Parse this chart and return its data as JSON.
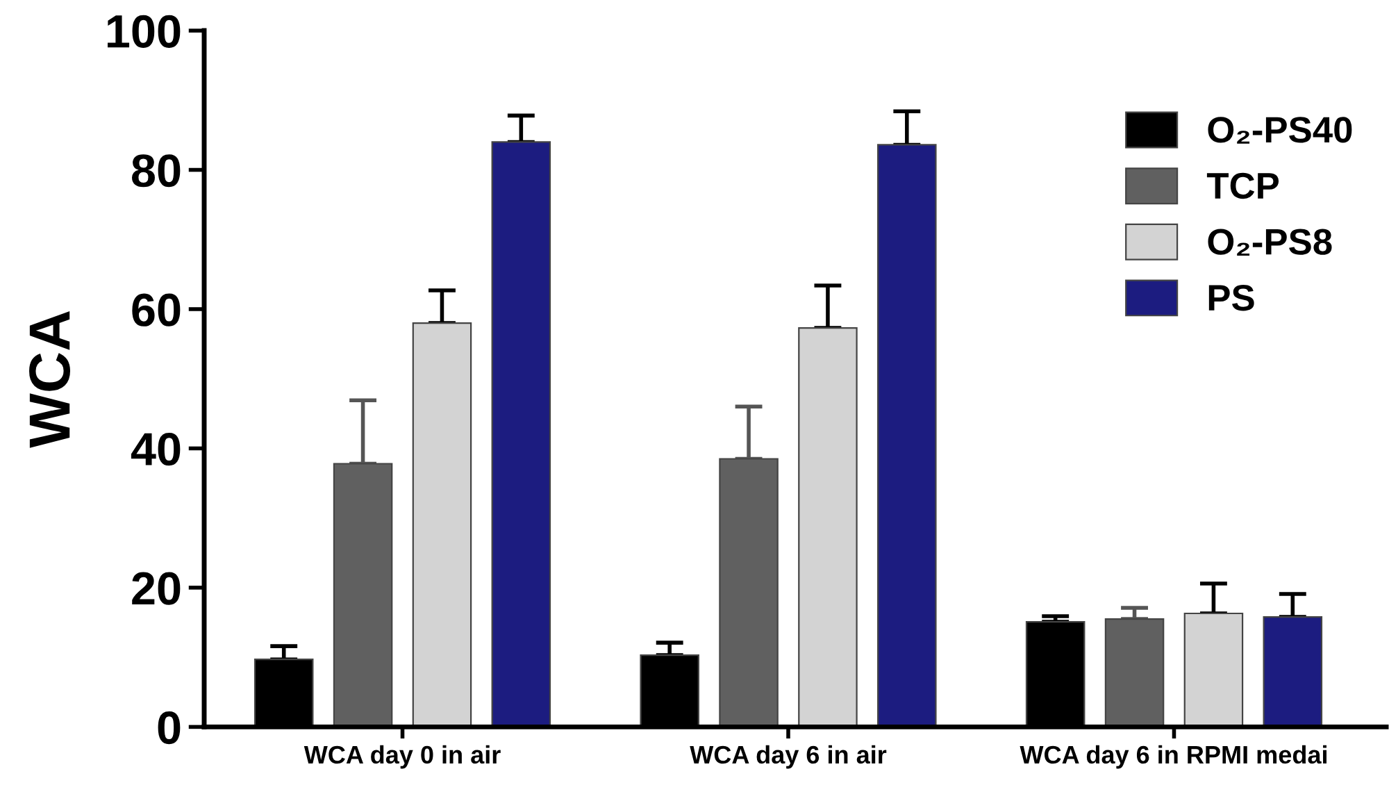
{
  "chart_data": {
    "type": "bar",
    "ylabel": "WCA",
    "categories": [
      "WCA day 0 in air",
      "WCA day 6 in air",
      "WCA day 6 in RPMI medai"
    ],
    "series": [
      {
        "name": "O₂-PS40",
        "color": "#000000",
        "values": [
          9.7,
          10.3,
          15.1
        ],
        "errors": [
          [
            9.7,
            11.6
          ],
          [
            10.3,
            12.1
          ],
          [
            15.1,
            15.9
          ]
        ]
      },
      {
        "name": "TCP",
        "color": "#606060",
        "values": [
          37.8,
          38.5,
          15.5
        ],
        "errors": [
          [
            37.8,
            46.9
          ],
          [
            38.5,
            46.0
          ],
          [
            15.5,
            17.1
          ]
        ]
      },
      {
        "name": "O₂-PS8",
        "color": "#d3d3d3",
        "values": [
          58.0,
          57.3,
          16.3
        ],
        "errors": [
          [
            58.0,
            62.7
          ],
          [
            57.3,
            63.4
          ],
          [
            16.3,
            20.6
          ]
        ]
      },
      {
        "name": "PS",
        "color": "#1c1c80",
        "values": [
          84.0,
          83.6,
          15.8
        ],
        "errors": [
          [
            84.0,
            87.8
          ],
          [
            83.6,
            88.4
          ],
          [
            15.8,
            19.1
          ]
        ]
      }
    ],
    "ylim": [
      0,
      100
    ],
    "yticks": [
      0,
      20,
      40,
      60,
      80,
      100
    ],
    "grid": false,
    "legend": "top right"
  }
}
